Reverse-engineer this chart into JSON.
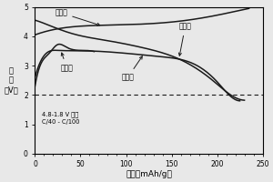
{
  "xlabel": "容量（mAh/g）",
  "ylabel": "电\n压\n（V）",
  "xlim": [
    0,
    250
  ],
  "ylim": [
    0,
    5
  ],
  "yticks": [
    0,
    1,
    2,
    3,
    4,
    5
  ],
  "xticks": [
    0,
    50,
    100,
    150,
    200,
    250
  ],
  "dashed_y": 2.0,
  "ann1_text": "第一次",
  "ann2_text": "第二次",
  "ann3_text": "第一次",
  "ann4_text": "第二次",
  "info_text": "4.8-1.8 V 截止\nC/40 - C/100",
  "line_color": "#1a1a1a",
  "bg_color": "#e8e8e8",
  "charge1_x": [
    0,
    10,
    40,
    80,
    120,
    160,
    200,
    220,
    235
  ],
  "charge1_y": [
    4.05,
    4.15,
    4.32,
    4.38,
    4.42,
    4.52,
    4.72,
    4.85,
    4.95
  ],
  "discharge1_x": [
    0,
    5,
    15,
    40,
    80,
    120,
    160,
    195,
    215,
    230
  ],
  "discharge1_y": [
    4.55,
    4.5,
    4.38,
    4.1,
    3.85,
    3.6,
    3.2,
    2.5,
    2.0,
    1.82
  ],
  "charge2_x": [
    0,
    5,
    15,
    25,
    35,
    50,
    65
  ],
  "charge2_y": [
    2.3,
    2.95,
    3.4,
    3.72,
    3.62,
    3.52,
    3.48
  ],
  "discharge2_x": [
    0,
    8,
    25,
    60,
    100,
    140,
    175,
    200,
    215,
    225
  ],
  "discharge2_y": [
    2.6,
    3.25,
    3.52,
    3.5,
    3.42,
    3.3,
    3.05,
    2.45,
    1.95,
    1.8
  ]
}
